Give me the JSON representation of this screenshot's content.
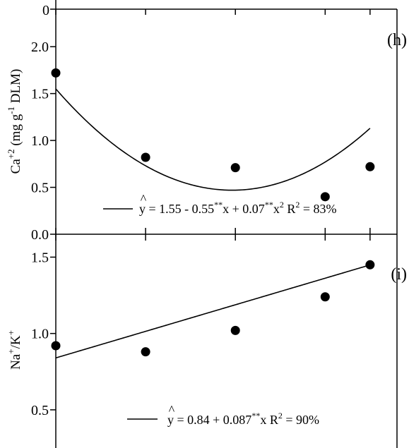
{
  "chart_data": [
    {
      "type": "scatter",
      "panel": "(h)",
      "title": "",
      "xlabel": "",
      "ylabel": "Ca+2 (mg g-1 DLM)",
      "ylabel_parts": {
        "base": "Ca",
        "sup1": "+2",
        "mid": " (mg g",
        "sup2": "-1",
        "end": " DLM)"
      },
      "ylim": [
        0,
        2.4
      ],
      "xlim": [
        0,
        7.6
      ],
      "yticks": [
        0.0,
        0.5,
        1.0,
        1.5,
        2.0
      ],
      "ytick_labels": [
        "0.0",
        "0.5",
        "1.0",
        "1.5",
        "2.0"
      ],
      "top_tick_label": "0",
      "xticks": [
        0,
        2,
        4,
        6,
        7
      ],
      "grid": false,
      "points": [
        {
          "x": 0,
          "y": 1.72
        },
        {
          "x": 2,
          "y": 0.82
        },
        {
          "x": 4,
          "y": 0.71
        },
        {
          "x": 6,
          "y": 0.4
        },
        {
          "x": 7,
          "y": 0.72
        }
      ],
      "fit": {
        "a": 1.55,
        "b": -0.55,
        "c": 0.07
      },
      "legend_position": "bottom-center",
      "equation": {
        "hat": "^",
        "y": "y",
        "t1": " = 1.55 - 0.55",
        "s1": "**",
        "t2": "x + 0.07",
        "s2": "**",
        "t3": "x",
        "s3": "2",
        "t4": " R",
        "s4": "2",
        "t5": " = 83%"
      }
    },
    {
      "type": "scatter",
      "panel": "(i)",
      "title": "",
      "xlabel": "",
      "ylabel": "Na+/K+",
      "ylabel_parts": {
        "base": "Na",
        "sup1": "+",
        "mid": "/K",
        "sup2": "+"
      },
      "ylim": [
        0.25,
        1.65
      ],
      "xlim": [
        0,
        7.6
      ],
      "yticks": [
        0.5,
        1.0,
        1.5
      ],
      "ytick_labels": [
        "0.5",
        "1.0",
        "1.5"
      ],
      "xticks": [
        0,
        2,
        4,
        6,
        7
      ],
      "grid": false,
      "points": [
        {
          "x": 0,
          "y": 0.92
        },
        {
          "x": 2,
          "y": 0.88
        },
        {
          "x": 4,
          "y": 1.02
        },
        {
          "x": 6,
          "y": 1.24
        },
        {
          "x": 7,
          "y": 1.45
        }
      ],
      "fit": {
        "a": 0.84,
        "b": 0.087,
        "c": 0
      },
      "legend_position": "bottom-center",
      "equation": {
        "hat": "^",
        "y": "y",
        "t1": " = 0.84 + 0.087",
        "s1": "**",
        "t2": "x R",
        "s2": "2",
        "t3": " = 90%"
      }
    }
  ]
}
